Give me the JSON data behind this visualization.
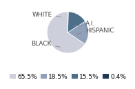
{
  "labels": [
    "WHITE",
    "BLACK",
    "HISPANIC",
    "A.I."
  ],
  "values": [
    65.5,
    18.5,
    15.5,
    0.4
  ],
  "colors": [
    "#cdd0db",
    "#8fa0b8",
    "#4e6f8a",
    "#1f3a52"
  ],
  "legend_labels": [
    "65.5%",
    "18.5%",
    "15.5%",
    "0.4%"
  ],
  "label_positions": {
    "WHITE": [
      -0.35,
      1.15
    ],
    "BLACK": [
      -1.35,
      -0.4
    ],
    "HISPANIC": [
      1.15,
      0.05
    ],
    "A.I.": [
      1.15,
      0.45
    ]
  },
  "startangle": 90,
  "background_color": "#ffffff",
  "font_size": 6.5
}
